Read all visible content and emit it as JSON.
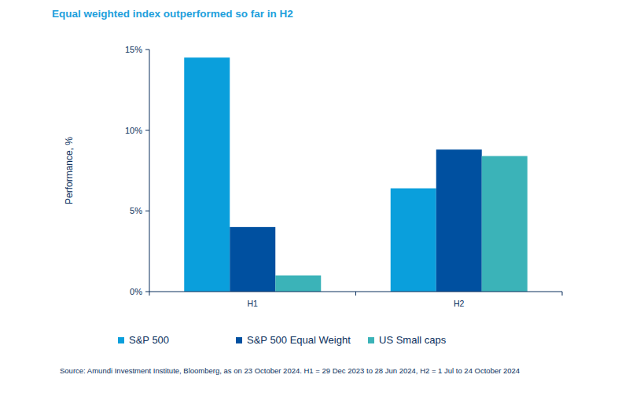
{
  "chart_data": {
    "type": "bar",
    "title": "Equal weighted index outperformed so far in H2",
    "y_label": "Performance, %",
    "note": "Source: Amundi Investment Institute, Bloomberg, as on 23 October 2024. H1 = 29 Dec 2023 to 28 Jun 2024, H2 = 1 Jul to 24 October 2024",
    "categories": [
      "H1",
      "H2"
    ],
    "series": [
      {
        "name": "S&P 500",
        "color": "#0a9fdc",
        "values": [
          14.5,
          6.4
        ]
      },
      {
        "name": "S&P 500 Equal Weight",
        "color": "#0050a0",
        "values": [
          4.0,
          8.8
        ]
      },
      {
        "name": "US Small caps",
        "color": "#3bb3b8",
        "values": [
          1.0,
          8.4
        ]
      }
    ],
    "ylim": [
      0,
      15
    ],
    "yticks": [
      {
        "value": 0,
        "label": "0%"
      },
      {
        "value": 5,
        "label": "5%"
      },
      {
        "value": 10,
        "label": "10%"
      },
      {
        "value": 15,
        "label": "15%"
      }
    ],
    "grid": false,
    "legend": "bottom"
  }
}
